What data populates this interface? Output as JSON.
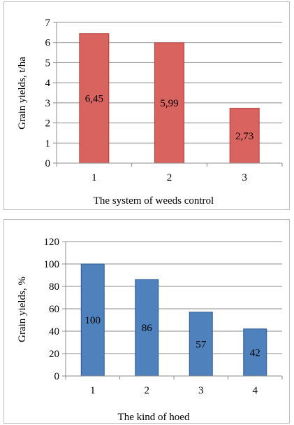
{
  "chart_data": [
    {
      "type": "bar",
      "categories": [
        "1",
        "2",
        "3"
      ],
      "values": [
        6.45,
        5.99,
        2.73
      ],
      "data_labels": [
        "6,45",
        "5,99",
        "2,73"
      ],
      "xlabel": "The system  of weeds control",
      "ylabel": "Grain yields, t/ha",
      "ylim": [
        0,
        7
      ],
      "yticks": [
        "0",
        "1",
        "2",
        "3",
        "4",
        "5",
        "6",
        "7"
      ],
      "grid": true,
      "colors": {
        "fill": "#d9645f",
        "stroke": "#b23a36"
      }
    },
    {
      "type": "bar",
      "categories": [
        "1",
        "2",
        "3",
        "4"
      ],
      "values": [
        100,
        86,
        57,
        42
      ],
      "data_labels": [
        "100",
        "86",
        "57",
        "42"
      ],
      "xlabel": "The kind of hoed",
      "ylabel": "Grain yields, %",
      "ylim": [
        0,
        120
      ],
      "yticks": [
        "0",
        "20",
        "40",
        "60",
        "80",
        "100",
        "120"
      ],
      "grid": true,
      "colors": {
        "fill": "#4f81bd",
        "stroke": "#2c5c8f"
      }
    }
  ]
}
